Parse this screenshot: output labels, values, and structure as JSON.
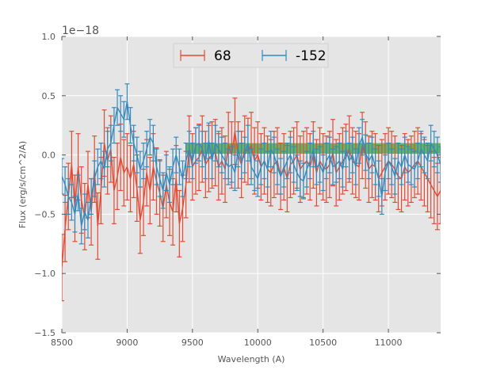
{
  "chart_data": {
    "type": "line",
    "title": "",
    "xlabel": "Wavelength (A)",
    "ylabel": "Flux (erg/s/cm^2/A)",
    "y_offset_label": "1e−18",
    "xlim": [
      8500,
      11400
    ],
    "ylim": [
      -1.5,
      1.0
    ],
    "xticks": [
      8500,
      9000,
      9500,
      10000,
      10500,
      11000
    ],
    "xtick_labels": [
      "8500",
      "9000",
      "9500",
      "10000",
      "10500",
      "11000"
    ],
    "yticks": [
      -1.5,
      -1.0,
      -0.5,
      0.0,
      0.5,
      1.0
    ],
    "ytick_labels": [
      "−1.5",
      "−1.0",
      "−0.5",
      "0.0",
      "0.5",
      "1.0"
    ],
    "grid": true,
    "legend_position": "top-center",
    "band": {
      "x": [
        9450,
        11400
      ],
      "y": [
        0.01,
        0.1
      ],
      "color": "#2ca02c"
    },
    "series": [
      {
        "name": "68",
        "color": "#E24A33",
        "x": [
          8500,
          8525,
          8550,
          8575,
          8600,
          8625,
          8650,
          8675,
          8700,
          8725,
          8750,
          8775,
          8800,
          8825,
          8850,
          8875,
          8900,
          8925,
          8950,
          8975,
          9000,
          9025,
          9050,
          9075,
          9100,
          9125,
          9150,
          9175,
          9200,
          9225,
          9250,
          9275,
          9300,
          9325,
          9350,
          9375,
          9400,
          9425,
          9450,
          9475,
          9500,
          9525,
          9550,
          9575,
          9600,
          9625,
          9650,
          9675,
          9700,
          9725,
          9750,
          9775,
          9800,
          9825,
          9850,
          9875,
          9900,
          9925,
          9950,
          9975,
          10000,
          10025,
          10050,
          10075,
          10100,
          10125,
          10150,
          10175,
          10200,
          10225,
          10250,
          10275,
          10300,
          10325,
          10350,
          10375,
          10400,
          10425,
          10450,
          10475,
          10500,
          10525,
          10550,
          10575,
          10600,
          10625,
          10650,
          10675,
          10700,
          10725,
          10750,
          10775,
          10800,
          10825,
          10850,
          10875,
          10900,
          10925,
          10950,
          10975,
          11000,
          11025,
          11050,
          11075,
          11100,
          11125,
          11150,
          11175,
          11200,
          11225,
          11250,
          11275,
          11300,
          11325,
          11350,
          11375,
          11400
        ],
        "y": [
          -0.95,
          -0.62,
          -0.35,
          -0.08,
          -0.45,
          -0.1,
          -0.38,
          -0.52,
          -0.25,
          -0.48,
          -0.12,
          -0.6,
          -0.3,
          0.1,
          -0.05,
          0.05,
          -0.3,
          -0.18,
          -0.02,
          -0.15,
          -0.1,
          -0.2,
          -0.08,
          -0.28,
          -0.55,
          -0.4,
          -0.15,
          -0.3,
          -0.1,
          -0.22,
          -0.32,
          -0.45,
          -0.25,
          -0.4,
          -0.48,
          -0.2,
          -0.58,
          -0.45,
          -0.25,
          0.05,
          -0.1,
          -0.05,
          -0.02,
          0.05,
          -0.08,
          -0.03,
          0.0,
          0.02,
          -0.1,
          -0.05,
          -0.12,
          0.08,
          0.0,
          0.2,
          0.0,
          -0.08,
          0.05,
          0.03,
          0.08,
          -0.05,
          0.0,
          -0.1,
          -0.05,
          -0.12,
          -0.15,
          -0.08,
          -0.05,
          -0.18,
          -0.1,
          -0.2,
          -0.08,
          -0.05,
          0.0,
          -0.12,
          -0.08,
          -0.05,
          -0.1,
          0.0,
          -0.15,
          -0.05,
          -0.1,
          -0.12,
          -0.08,
          0.02,
          -0.15,
          -0.1,
          -0.05,
          -0.02,
          0.05,
          -0.05,
          -0.08,
          -0.1,
          0.08,
          0.0,
          -0.12,
          -0.08,
          -0.1,
          -0.2,
          -0.15,
          -0.1,
          -0.05,
          -0.08,
          -0.12,
          -0.18,
          -0.2,
          -0.1,
          -0.15,
          -0.12,
          -0.08,
          -0.05,
          -0.1,
          -0.15,
          -0.2,
          -0.25,
          -0.3,
          -0.35,
          -0.3
        ],
        "error": 0.28
      },
      {
        "name": "-152",
        "color": "#348ABD",
        "x": [
          8500,
          8525,
          8550,
          8575,
          8600,
          8625,
          8650,
          8675,
          8700,
          8725,
          8750,
          8775,
          8800,
          8825,
          8850,
          8875,
          8900,
          8925,
          8950,
          8975,
          9000,
          9025,
          9050,
          9075,
          9100,
          9125,
          9150,
          9175,
          9200,
          9225,
          9250,
          9275,
          9300,
          9325,
          9350,
          9375,
          9400,
          9425,
          9450,
          9475,
          9500,
          9525,
          9550,
          9575,
          9600,
          9625,
          9650,
          9675,
          9700,
          9725,
          9750,
          9775,
          9800,
          9825,
          9850,
          9875,
          9900,
          9925,
          9950,
          9975,
          10000,
          10025,
          10050,
          10075,
          10100,
          10125,
          10150,
          10175,
          10200,
          10225,
          10250,
          10275,
          10300,
          10325,
          10350,
          10375,
          10400,
          10425,
          10450,
          10475,
          10500,
          10525,
          10550,
          10575,
          10600,
          10625,
          10650,
          10675,
          10700,
          10725,
          10750,
          10775,
          10800,
          10825,
          10850,
          10875,
          10900,
          10925,
          10950,
          10975,
          11000,
          11025,
          11050,
          11075,
          11100,
          11125,
          11150,
          11175,
          11200,
          11225,
          11250,
          11275,
          11300,
          11325,
          11350,
          11375,
          11400
        ],
        "y": [
          -0.18,
          -0.25,
          -0.35,
          -0.4,
          -0.5,
          -0.32,
          -0.6,
          -0.48,
          -0.55,
          -0.35,
          -0.2,
          -0.1,
          -0.05,
          -0.12,
          0.05,
          0.1,
          0.25,
          0.4,
          0.35,
          0.3,
          0.45,
          0.25,
          0.1,
          0.0,
          -0.12,
          -0.05,
          0.05,
          0.15,
          0.1,
          -0.1,
          -0.2,
          -0.3,
          -0.15,
          -0.25,
          -0.1,
          0.0,
          -0.1,
          -0.2,
          -0.05,
          0.05,
          -0.05,
          0.08,
          0.1,
          0.05,
          -0.05,
          0.12,
          -0.05,
          0.1,
          0.05,
          0.0,
          -0.05,
          -0.1,
          -0.08,
          -0.15,
          0.05,
          -0.05,
          0.0,
          0.1,
          -0.1,
          -0.15,
          -0.2,
          -0.1,
          -0.05,
          -0.12,
          0.05,
          0.0,
          -0.1,
          -0.18,
          -0.12,
          -0.05,
          0.0,
          -0.08,
          -0.15,
          -0.2,
          -0.22,
          -0.12,
          -0.05,
          0.05,
          -0.1,
          -0.08,
          -0.15,
          -0.05,
          0.0,
          -0.1,
          -0.08,
          -0.05,
          -0.12,
          0.05,
          -0.05,
          0.0,
          -0.1,
          0.08,
          0.15,
          0.02,
          -0.05,
          0.0,
          -0.1,
          -0.2,
          -0.35,
          -0.15,
          -0.05,
          -0.1,
          -0.18,
          -0.05,
          -0.1,
          0.0,
          -0.08,
          -0.1,
          -0.12,
          -0.05,
          0.05,
          0.0,
          -0.05,
          0.1,
          0.05,
          0.0,
          -0.08
        ],
        "error": 0.15
      }
    ]
  }
}
